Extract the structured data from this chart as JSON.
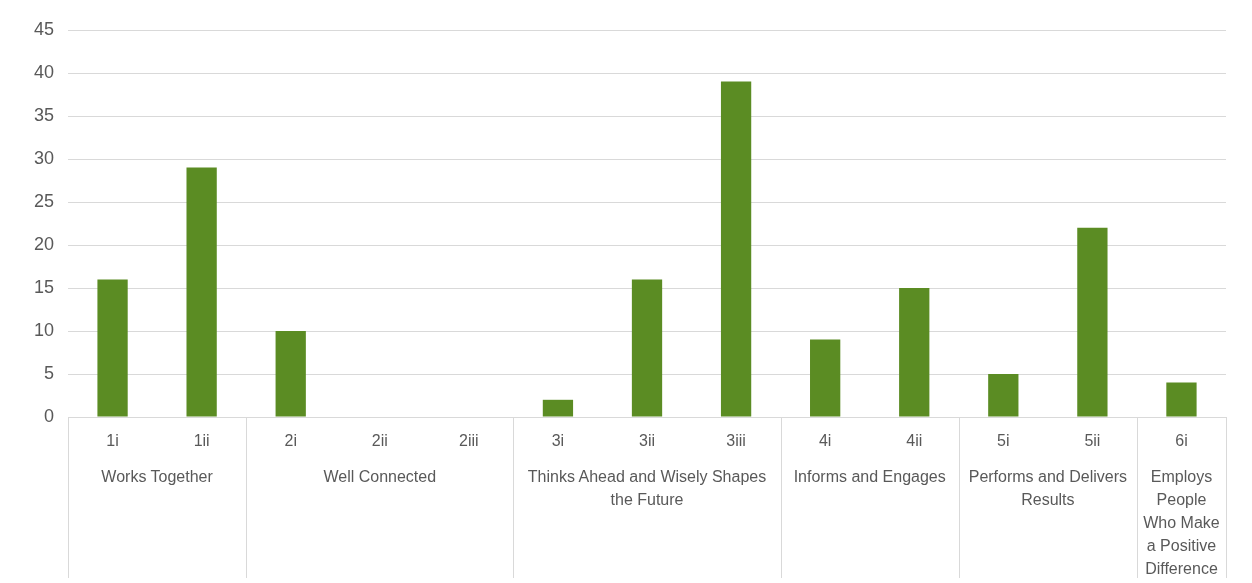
{
  "chart_data": {
    "type": "bar",
    "categories": [
      "1i",
      "1ii",
      "2i",
      "2ii",
      "2iii",
      "3i",
      "3ii",
      "3iii",
      "4i",
      "4ii",
      "5i",
      "5ii",
      "6i"
    ],
    "values": [
      16,
      29,
      10,
      0,
      0,
      2,
      16,
      39,
      9,
      15,
      5,
      22,
      4
    ],
    "color": "#5b8c23",
    "ylim": [
      0,
      45
    ],
    "yticks": [
      0,
      5,
      10,
      15,
      20,
      25,
      30,
      35,
      40,
      45
    ],
    "grid": "y",
    "legend": false,
    "annotations": [
      "Works Together",
      "Well Connected",
      "Thinks Ahead and Wisely Shapes the Future",
      "Informs and Engages",
      "Performs and Delivers Results",
      "Employs People Who Make a Positive Difference"
    ]
  }
}
